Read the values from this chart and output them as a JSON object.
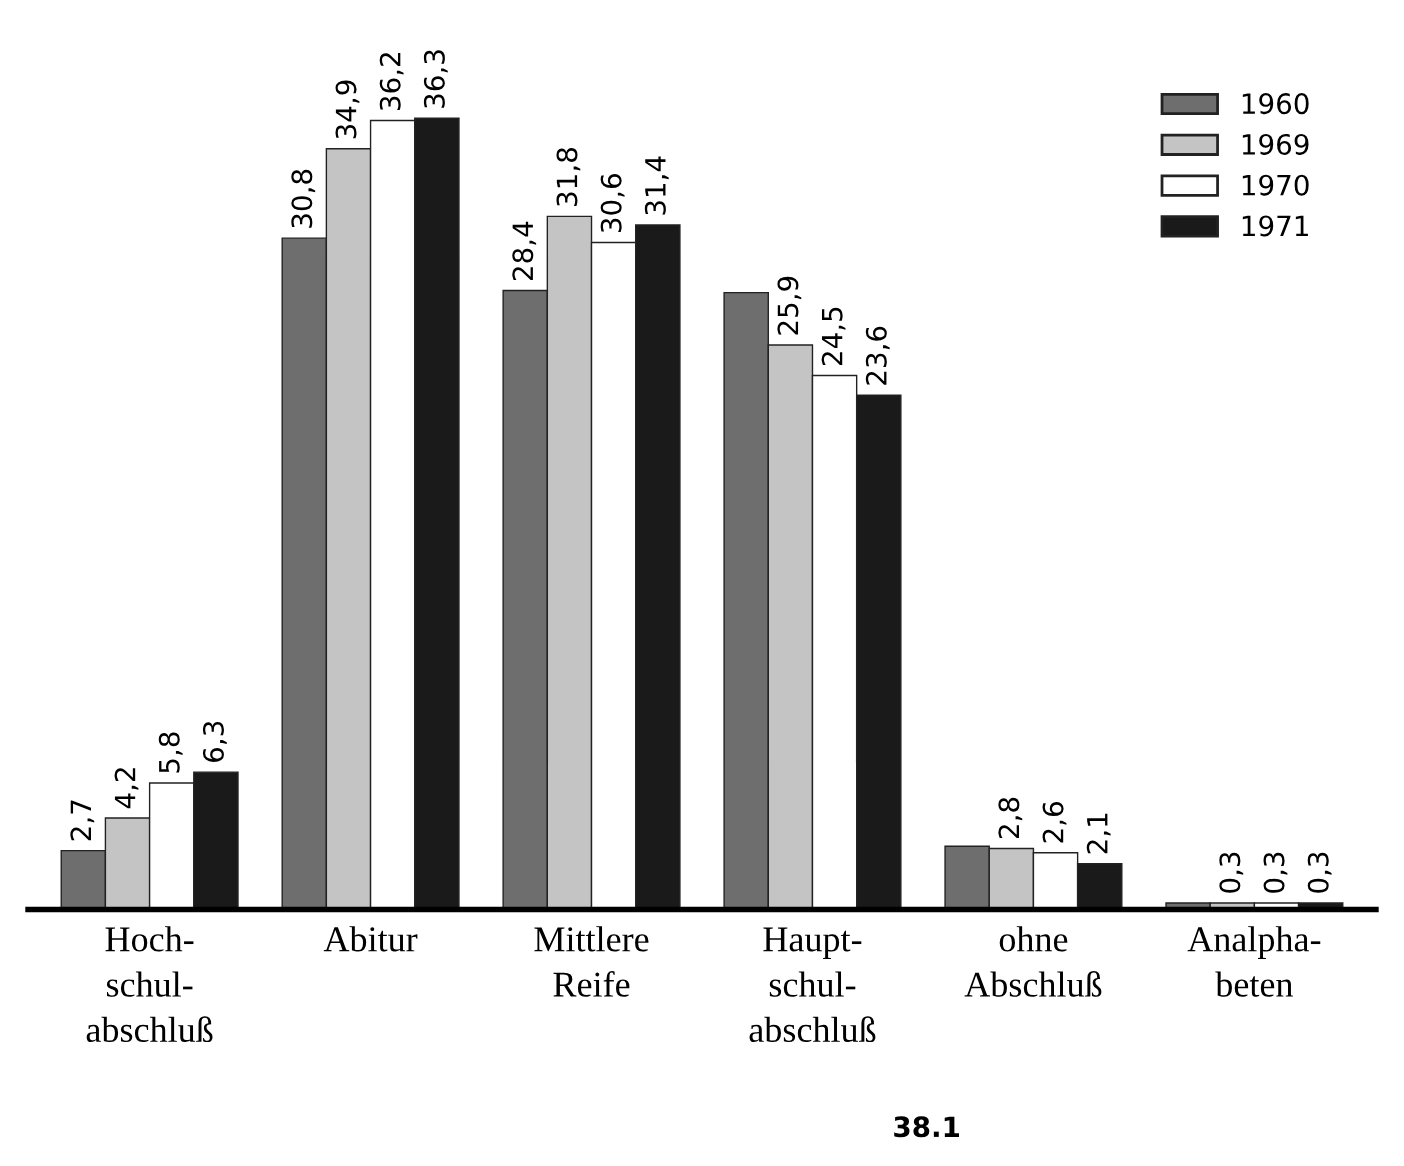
{
  "chart_data": {
    "type": "bar",
    "categories": [
      "Hoch-\nschul-\nabschluß",
      "Abitur",
      "Mittlere\nReife",
      "Haupt-\nschul-\nabschluß",
      "ohne\nAbschluß",
      "Analpha-\nbeten"
    ],
    "series": [
      {
        "name": "1960",
        "color": "#6e6e6e",
        "values": [
          2.7,
          30.8,
          28.4,
          28.3,
          2.9,
          0.3
        ],
        "value_labels": [
          "2,7",
          "30,8",
          "28,4",
          null,
          null,
          null
        ]
      },
      {
        "name": "1969",
        "color": "#c4c4c4",
        "values": [
          4.2,
          34.9,
          31.8,
          25.9,
          2.8,
          0.3
        ],
        "value_labels": [
          "4,2",
          "34,9",
          "31,8",
          "25,9",
          "2,8",
          "0,3"
        ]
      },
      {
        "name": "1970",
        "color": "#ffffff",
        "values": [
          5.8,
          36.2,
          30.6,
          24.5,
          2.6,
          0.3
        ],
        "value_labels": [
          "5,8",
          "36,2",
          "30,6",
          "24,5",
          "2,6",
          "0,3"
        ]
      },
      {
        "name": "1971",
        "color": "#1a1a1a",
        "values": [
          6.3,
          36.3,
          31.4,
          23.6,
          2.1,
          0.3
        ],
        "value_labels": [
          "6,3",
          "36,3",
          "31,4",
          "23,6",
          "2,1",
          "0,3"
        ]
      }
    ],
    "legend": "top right",
    "annotations": [
      "38.1"
    ]
  }
}
